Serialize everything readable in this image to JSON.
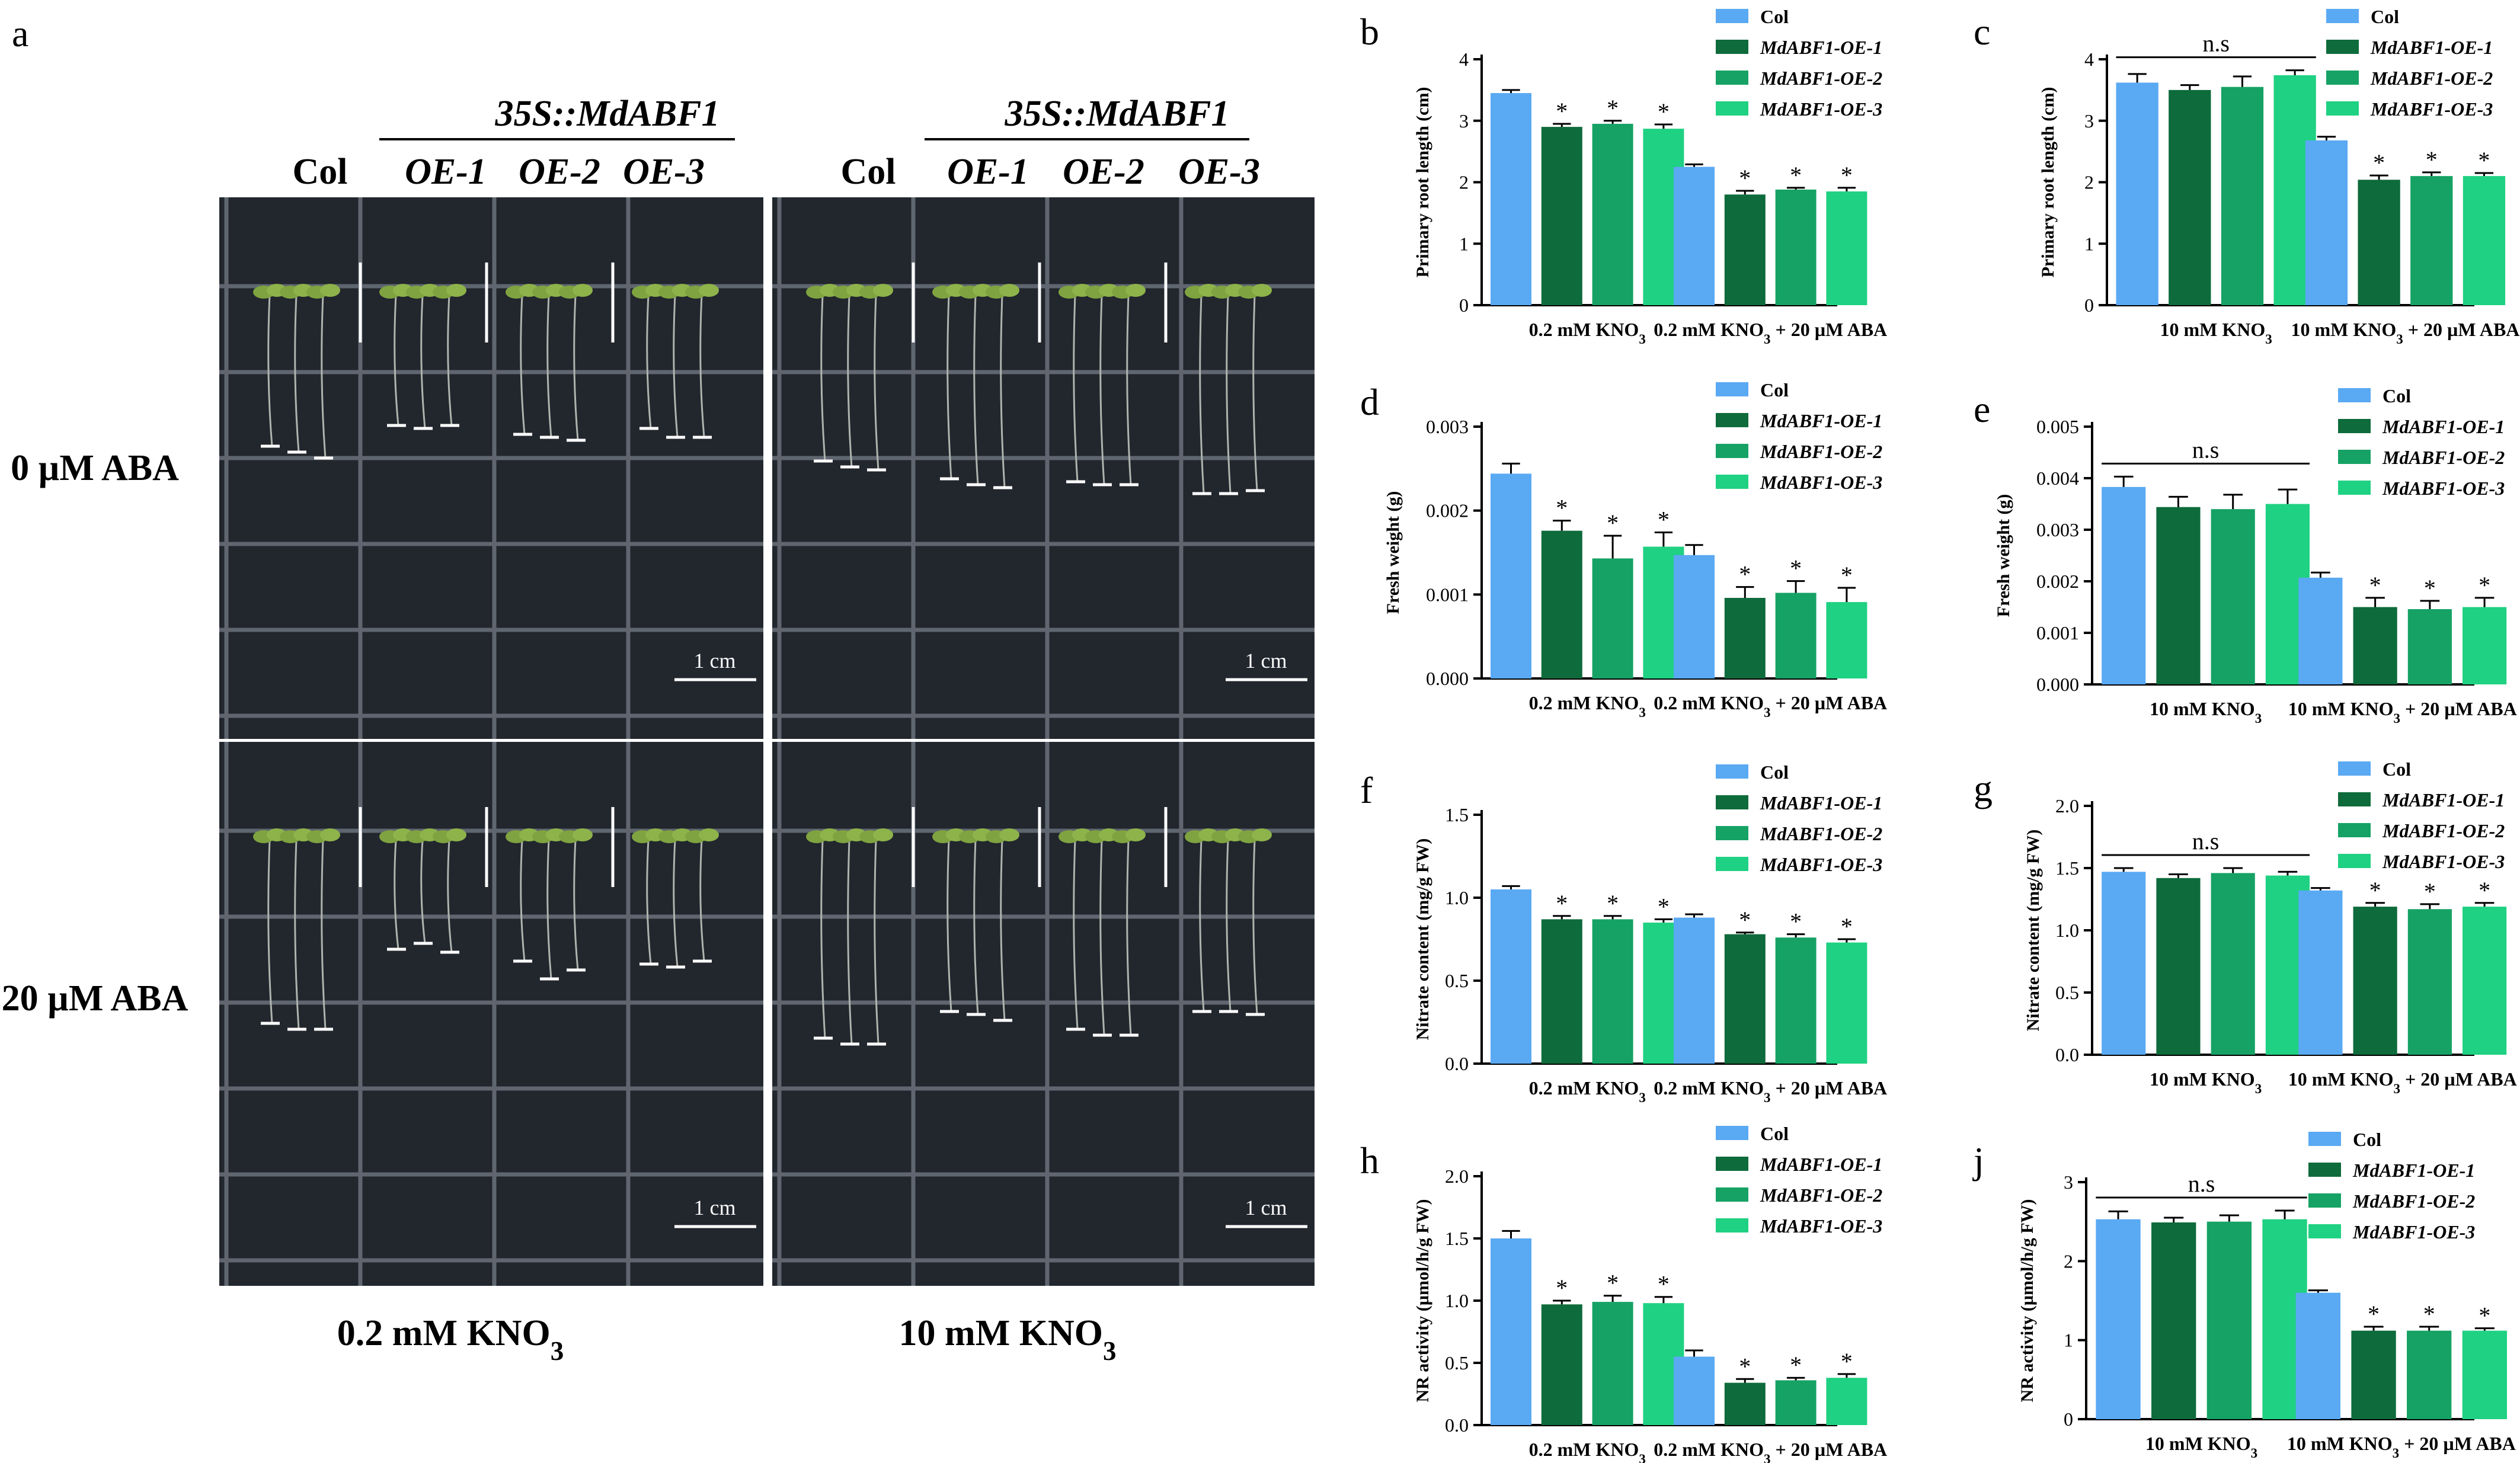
{
  "figure": {
    "panel_a": {
      "letter": "a",
      "construct": "35S::MdABF1",
      "genotypes": [
        "Col",
        "OE-1",
        "OE-2",
        "OE-3"
      ],
      "row_labels": [
        "0 µM ABA",
        "20 µM ABA"
      ],
      "col_labels": [
        "0.2 mM KNO3",
        "10 mM KNO3"
      ],
      "scale_bar": "1 cm",
      "colors": {
        "plate": "#22262d",
        "seedling": "#7fa340",
        "marker": "#ffffff"
      }
    },
    "legend_labels": [
      "Col",
      "MdABF1-OE-1",
      "MdABF1-OE-2",
      "MdABF1-OE-3"
    ],
    "series_colors": [
      "#5aa9f3",
      "#0e6b3b",
      "#16a264",
      "#1fd182"
    ]
  },
  "chart_data": [
    {
      "letter": "b",
      "type": "bar",
      "ylabel": "Primary root length (cm)",
      "categories": [
        "0.2 mM KNO3",
        "0.2 mM KNO3 + 20 µM ABA"
      ],
      "ylim": [
        0,
        4
      ],
      "yticks": [
        "0",
        "1",
        "2",
        "3",
        "4"
      ],
      "series": [
        {
          "name": "Col",
          "values": [
            3.45,
            2.25
          ],
          "errors": [
            0.05,
            0.04
          ],
          "sig": [
            "",
            ""
          ]
        },
        {
          "name": "MdABF1-OE-1",
          "values": [
            2.9,
            1.8
          ],
          "errors": [
            0.05,
            0.06
          ],
          "sig": [
            "*",
            "*"
          ]
        },
        {
          "name": "MdABF1-OE-2",
          "values": [
            2.95,
            1.88
          ],
          "errors": [
            0.05,
            0.03
          ],
          "sig": [
            "*",
            "*"
          ]
        },
        {
          "name": "MdABF1-OE-3",
          "values": [
            2.87,
            1.85
          ],
          "errors": [
            0.07,
            0.06
          ],
          "sig": [
            "*",
            "*"
          ]
        }
      ],
      "annotation": ""
    },
    {
      "letter": "c",
      "type": "bar",
      "ylabel": "Primary root length (cm)",
      "categories": [
        "10 mM KNO3",
        "10 mM KNO3 + 20 µM ABA"
      ],
      "ylim": [
        0,
        4
      ],
      "yticks": [
        "0",
        "1",
        "2",
        "3",
        "4"
      ],
      "series": [
        {
          "name": "Col",
          "values": [
            3.62,
            2.68
          ],
          "errors": [
            0.14,
            0.06
          ],
          "sig": [
            "",
            ""
          ]
        },
        {
          "name": "MdABF1-OE-1",
          "values": [
            3.5,
            2.04
          ],
          "errors": [
            0.08,
            0.07
          ],
          "sig": [
            "",
            "*"
          ]
        },
        {
          "name": "MdABF1-OE-2",
          "values": [
            3.55,
            2.1
          ],
          "errors": [
            0.17,
            0.06
          ],
          "sig": [
            "",
            "*"
          ]
        },
        {
          "name": "MdABF1-OE-3",
          "values": [
            3.74,
            2.1
          ],
          "errors": [
            0.08,
            0.05
          ],
          "sig": [
            "",
            "*"
          ]
        }
      ],
      "annotation": "n.s"
    },
    {
      "letter": "d",
      "type": "bar",
      "ylabel": "Fresh weight (g)",
      "categories": [
        "0.2 mM KNO3",
        "0.2 mM KNO3 + 20 µM ABA"
      ],
      "ylim": [
        0,
        0.003
      ],
      "yticks": [
        "0.000",
        "0.001",
        "0.002",
        "0.003"
      ],
      "series": [
        {
          "name": "Col",
          "values": [
            0.00244,
            0.00147
          ],
          "errors": [
            0.00012,
            0.00012
          ],
          "sig": [
            "",
            ""
          ]
        },
        {
          "name": "MdABF1-OE-1",
          "values": [
            0.00176,
            0.00096
          ],
          "errors": [
            0.00012,
            0.00013
          ],
          "sig": [
            "*",
            "*"
          ]
        },
        {
          "name": "MdABF1-OE-2",
          "values": [
            0.00143,
            0.00102
          ],
          "errors": [
            0.00027,
            0.00014
          ],
          "sig": [
            "*",
            "*"
          ]
        },
        {
          "name": "MdABF1-OE-3",
          "values": [
            0.00157,
            0.00091
          ],
          "errors": [
            0.00017,
            0.00017
          ],
          "sig": [
            "*",
            "*"
          ]
        }
      ],
      "annotation": ""
    },
    {
      "letter": "e",
      "type": "bar",
      "ylabel": "Fresh weight (g)",
      "categories": [
        "10 mM KNO3",
        "10 mM KNO3 + 20 µM ABA"
      ],
      "ylim": [
        0,
        0.005
      ],
      "yticks": [
        "0.000",
        "0.001",
        "0.002",
        "0.003",
        "0.004",
        "0.005"
      ],
      "series": [
        {
          "name": "Col",
          "values": [
            0.00383,
            0.00207
          ],
          "errors": [
            0.0002,
            0.0001
          ],
          "sig": [
            "",
            ""
          ]
        },
        {
          "name": "MdABF1-OE-1",
          "values": [
            0.00344,
            0.0015
          ],
          "errors": [
            0.0002,
            0.00018
          ],
          "sig": [
            "",
            "*"
          ]
        },
        {
          "name": "MdABF1-OE-2",
          "values": [
            0.0034,
            0.00146
          ],
          "errors": [
            0.00028,
            0.00016
          ],
          "sig": [
            "",
            "*"
          ]
        },
        {
          "name": "MdABF1-OE-3",
          "values": [
            0.0035,
            0.0015
          ],
          "errors": [
            0.00028,
            0.00018
          ],
          "sig": [
            "",
            "*"
          ]
        }
      ],
      "annotation": "n.s"
    },
    {
      "letter": "f",
      "type": "bar",
      "ylabel": "Nitrate content (mg/g FW)",
      "categories": [
        "0.2 mM KNO3",
        "0.2 mM KNO3 + 20 µM ABA"
      ],
      "ylim": [
        0,
        1.5
      ],
      "yticks": [
        "0.0",
        "0.5",
        "1.0",
        "1.5"
      ],
      "series": [
        {
          "name": "Col",
          "values": [
            1.05,
            0.88
          ],
          "errors": [
            0.02,
            0.02
          ],
          "sig": [
            "",
            ""
          ]
        },
        {
          "name": "MdABF1-OE-1",
          "values": [
            0.87,
            0.78
          ],
          "errors": [
            0.02,
            0.01
          ],
          "sig": [
            "*",
            "*"
          ]
        },
        {
          "name": "MdABF1-OE-2",
          "values": [
            0.87,
            0.76
          ],
          "errors": [
            0.02,
            0.02
          ],
          "sig": [
            "*",
            "*"
          ]
        },
        {
          "name": "MdABF1-OE-3",
          "values": [
            0.85,
            0.73
          ],
          "errors": [
            0.02,
            0.02
          ],
          "sig": [
            "*",
            "*"
          ]
        }
      ],
      "annotation": ""
    },
    {
      "letter": "g",
      "type": "bar",
      "ylabel": "Nitrate content (mg/g FW)",
      "categories": [
        "10 mM KNO3",
        "10 mM KNO3 + 20 µM ABA"
      ],
      "ylim": [
        0,
        2.0
      ],
      "yticks": [
        "0.0",
        "0.5",
        "1.0",
        "1.5",
        "2.0"
      ],
      "series": [
        {
          "name": "Col",
          "values": [
            1.47,
            1.32
          ],
          "errors": [
            0.03,
            0.02
          ],
          "sig": [
            "",
            ""
          ]
        },
        {
          "name": "MdABF1-OE-1",
          "values": [
            1.42,
            1.19
          ],
          "errors": [
            0.03,
            0.03
          ],
          "sig": [
            "",
            "*"
          ]
        },
        {
          "name": "MdABF1-OE-2",
          "values": [
            1.46,
            1.17
          ],
          "errors": [
            0.04,
            0.04
          ],
          "sig": [
            "",
            "*"
          ]
        },
        {
          "name": "MdABF1-OE-3",
          "values": [
            1.44,
            1.19
          ],
          "errors": [
            0.03,
            0.03
          ],
          "sig": [
            "",
            "*"
          ]
        }
      ],
      "annotation": "n.s"
    },
    {
      "letter": "h",
      "type": "bar",
      "ylabel": "NR activity (µmol/h/g FW)",
      "categories": [
        "0.2 mM KNO3",
        "0.2 mM KNO3 + 20 µM ABA"
      ],
      "ylim": [
        0,
        2.0
      ],
      "yticks": [
        "0.0",
        "0.5",
        "1.0",
        "1.5",
        "2.0"
      ],
      "series": [
        {
          "name": "Col",
          "values": [
            1.5,
            0.55
          ],
          "errors": [
            0.06,
            0.05
          ],
          "sig": [
            "",
            ""
          ]
        },
        {
          "name": "MdABF1-OE-1",
          "values": [
            0.97,
            0.34
          ],
          "errors": [
            0.03,
            0.03
          ],
          "sig": [
            "*",
            "*"
          ]
        },
        {
          "name": "MdABF1-OE-2",
          "values": [
            0.99,
            0.36
          ],
          "errors": [
            0.05,
            0.02
          ],
          "sig": [
            "*",
            "*"
          ]
        },
        {
          "name": "MdABF1-OE-3",
          "values": [
            0.98,
            0.38
          ],
          "errors": [
            0.05,
            0.03
          ],
          "sig": [
            "*",
            "*"
          ]
        }
      ],
      "annotation": ""
    },
    {
      "letter": "j",
      "type": "bar",
      "ylabel": "NR activity (µmol/h/g FW)",
      "categories": [
        "10 mM KNO3",
        "10 mM KNO3 + 20 µM ABA"
      ],
      "ylim": [
        0,
        3
      ],
      "yticks": [
        "0",
        "1",
        "2",
        "3"
      ],
      "series": [
        {
          "name": "Col",
          "values": [
            2.53,
            1.6
          ],
          "errors": [
            0.1,
            0.03
          ],
          "sig": [
            "",
            ""
          ]
        },
        {
          "name": "MdABF1-OE-1",
          "values": [
            2.49,
            1.12
          ],
          "errors": [
            0.06,
            0.05
          ],
          "sig": [
            "",
            "*"
          ]
        },
        {
          "name": "MdABF1-OE-2",
          "values": [
            2.5,
            1.12
          ],
          "errors": [
            0.08,
            0.05
          ],
          "sig": [
            "",
            "*"
          ]
        },
        {
          "name": "MdABF1-OE-3",
          "values": [
            2.53,
            1.12
          ],
          "errors": [
            0.11,
            0.03
          ],
          "sig": [
            "",
            "*"
          ]
        }
      ],
      "annotation": "n.s"
    }
  ]
}
